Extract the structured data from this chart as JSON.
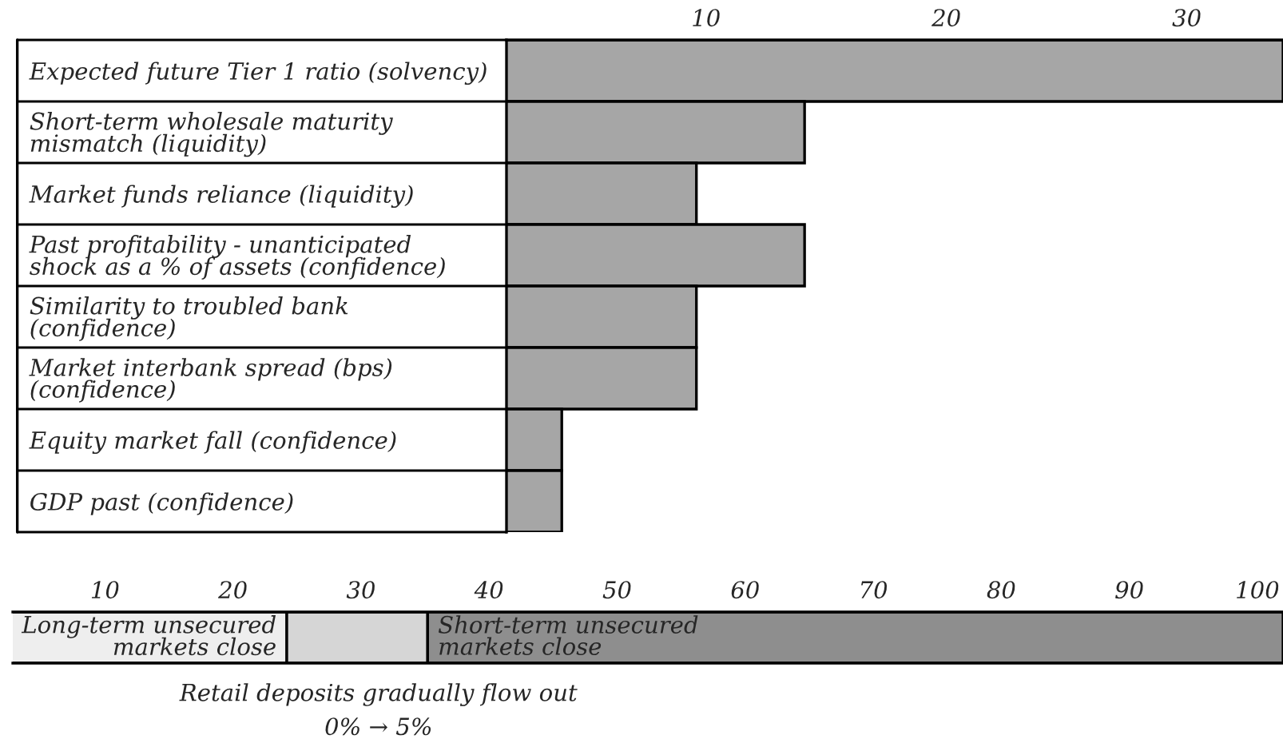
{
  "chart_data": [
    {
      "type": "bar",
      "orientation": "horizontal",
      "categories": [
        "Expected future Tier 1 ratio (solvency)",
        "Short-term wholesale maturity\nmismatch (liquidity)",
        "Market funds reliance (liquidity)",
        "Past profitability - unanticipated\nshock as a % of assets (confidence)",
        "Similarity to troubled bank\n(confidence)",
        "Market interbank spread (bps)\n(confidence)",
        "Equity market fall (confidence)",
        "GDP past (confidence)"
      ],
      "values": [
        34,
        14.1,
        9.6,
        14.1,
        9.6,
        9.6,
        4.0,
        4.0
      ],
      "color": "#a6a6a6",
      "xlim": [
        1.7,
        34
      ],
      "xticks": [
        10,
        20,
        30
      ],
      "grid": false
    },
    {
      "type": "bar",
      "orientation": "horizontal",
      "stacked": true,
      "categories": [
        null
      ],
      "series": [
        {
          "name": "Long-term unsecured\nmarkets close",
          "color": "#eeeeee",
          "values": [
            24.2
          ]
        },
        {
          "color": "#d6d6d6",
          "values": [
            11.0
          ]
        },
        {
          "name": "Short-term unsecured\nmarkets close",
          "color": "#8e8e8e",
          "values": [
            66.8
          ]
        }
      ],
      "xlim": [
        2.8,
        102
      ],
      "xticks": [
        10,
        20,
        30,
        40,
        50,
        60,
        70,
        80,
        90,
        100
      ],
      "grid": false,
      "annotations": [
        "Retail deposits gradually flow out",
        "0% → 5%"
      ]
    }
  ]
}
